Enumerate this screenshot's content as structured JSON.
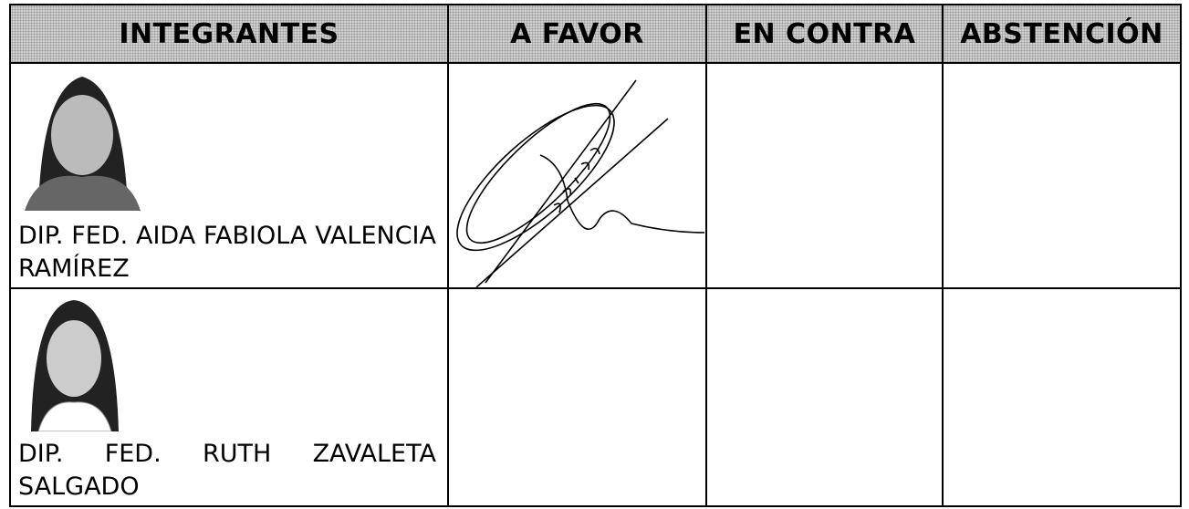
{
  "table": {
    "header": [
      "INTEGRANTES",
      "A FAVOR",
      "EN CONTRA",
      "ABSTENCIÓN"
    ],
    "rows": [
      {
        "name": "DIP. FED. AIDA FABIOLA VALENCIA RAMÍREZ"
      },
      {
        "name": "DIP. FED. RUTH ZAVALETA SALGADO"
      }
    ]
  }
}
